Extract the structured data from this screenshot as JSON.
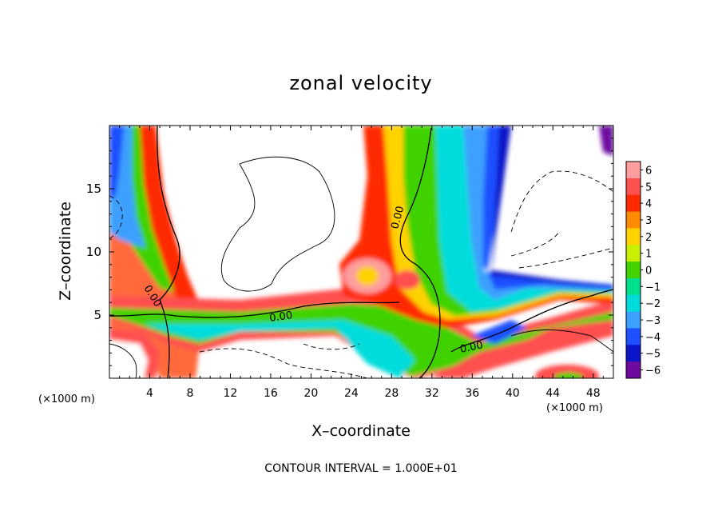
{
  "chart_data": {
    "type": "heatmap",
    "title": "zonal velocity",
    "xlabel": "X–coordinate",
    "ylabel": "Z–coordinate",
    "x_unit_left": "(×1000 m)",
    "x_unit_right": "(×1000 m)",
    "footer": "CONTOUR INTERVAL = 1.000E+01",
    "xlim": [
      0,
      50
    ],
    "ylim": [
      0,
      20
    ],
    "x_ticks": [
      4,
      8,
      12,
      16,
      20,
      24,
      28,
      32,
      36,
      40,
      44,
      48
    ],
    "y_ticks": [
      5,
      10,
      15
    ],
    "colorbar": {
      "ticks": [
        6,
        5,
        4,
        3,
        2,
        1,
        0,
        -1,
        -2,
        -3,
        -4,
        -5,
        -6
      ],
      "labels": [
        "6",
        "5",
        "4",
        "3",
        "2",
        "1",
        "0",
        "−1",
        "−2",
        "−3",
        "−4",
        "−5",
        "−6"
      ],
      "colors": [
        "#ff9e9e",
        "#ff5050",
        "#ff2a00",
        "#ff8c00",
        "#ffd200",
        "#c8f000",
        "#41d200",
        "#00e08c",
        "#00dcdc",
        "#3ca0ff",
        "#1e50ff",
        "#0a14c8",
        "#6e0aa0"
      ]
    },
    "contour_labels": [
      "0.00",
      "0.00",
      "0.00",
      "0.00"
    ],
    "contour_levels": [
      0
    ]
  }
}
